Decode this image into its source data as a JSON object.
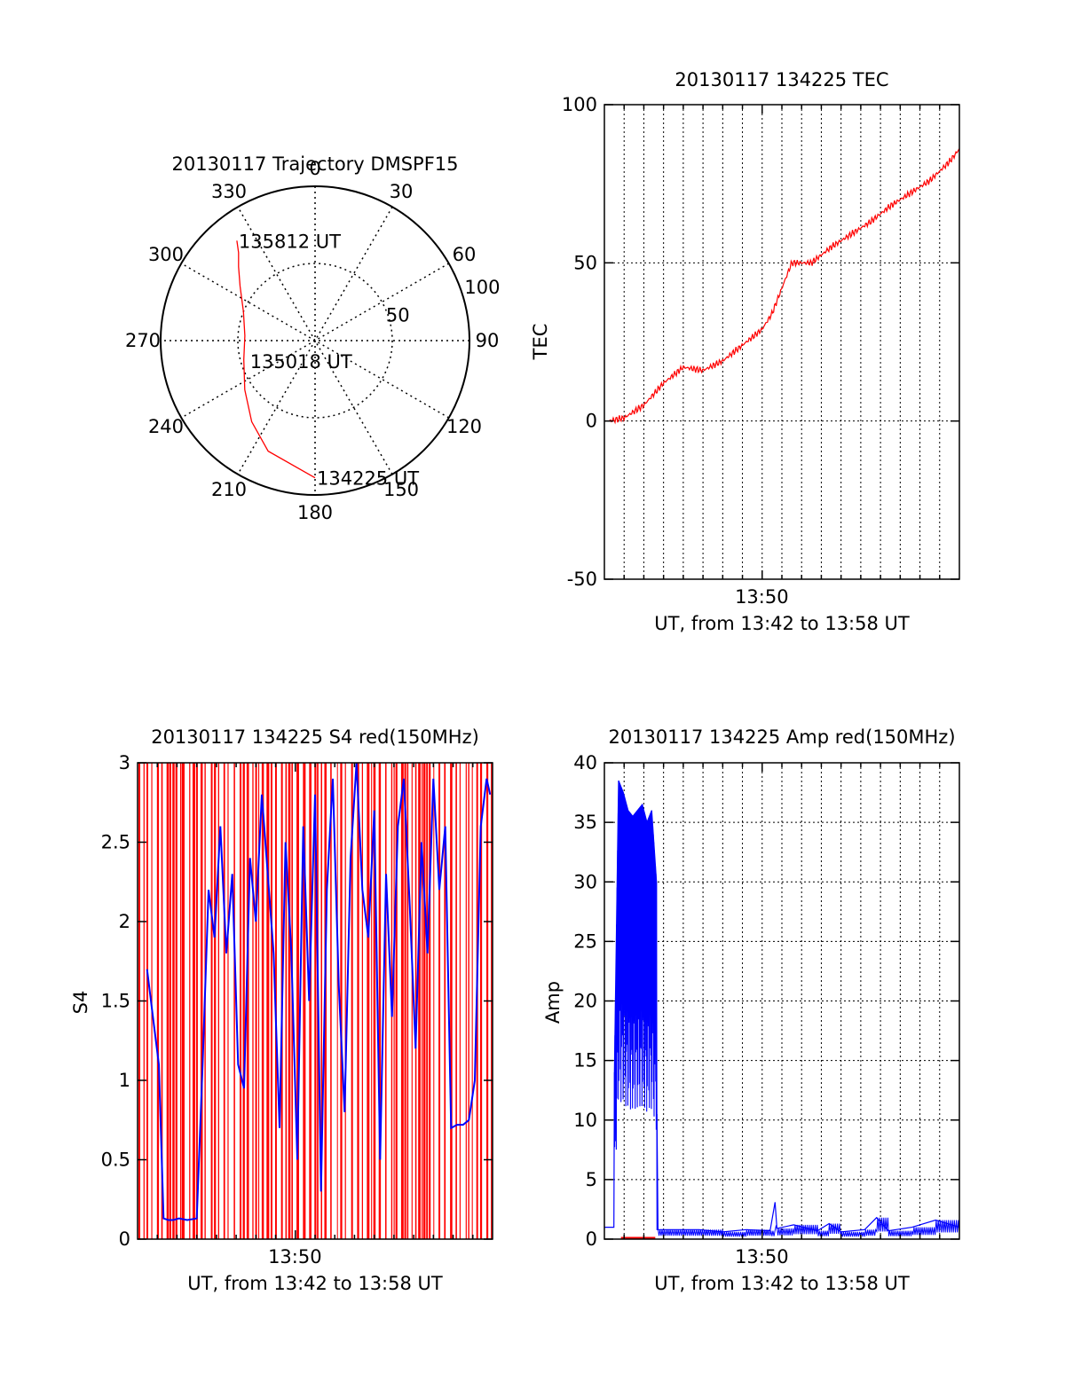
{
  "chart_data": [
    {
      "type": "scatter",
      "subtype": "polar-trajectory",
      "title": "20130117 Trajectory DMSPF15",
      "angle_labels": [
        "0",
        "30",
        "60",
        "90",
        "120",
        "150",
        "180",
        "210",
        "240",
        "270",
        "300",
        "330"
      ],
      "radial_labels": [
        "50",
        "100"
      ],
      "rlim": [
        0,
        100
      ],
      "colors": {
        "trajectory": "#ff0000",
        "frame": "#000000"
      },
      "series": [
        {
          "points": [
            {
              "azimuth_deg": 180.0,
              "elevation_deg": 10.0
            },
            {
              "azimuth_deg": 203.0,
              "elevation_deg": 20.0
            },
            {
              "azimuth_deg": 218.0,
              "elevation_deg": 30.0
            },
            {
              "azimuth_deg": 235.0,
              "elevation_deg": 40.0
            },
            {
              "azimuth_deg": 255.0,
              "elevation_deg": 47.0
            },
            {
              "azimuth_deg": 274.0,
              "elevation_deg": 49.0
            },
            {
              "azimuth_deg": 292.0,
              "elevation_deg": 45.0
            },
            {
              "azimuth_deg": 306.0,
              "elevation_deg": 36.0
            },
            {
              "azimuth_deg": 314.0,
              "elevation_deg": 28.0
            },
            {
              "azimuth_deg": 319.0,
              "elevation_deg": 22.0
            },
            {
              "azimuth_deg": 322.0,
              "elevation_deg": 16.0
            }
          ]
        }
      ],
      "annotations": [
        {
          "text": "135812 UT",
          "azimuth_deg": 322.0,
          "elevation_deg": 16.0
        },
        {
          "text": "135018 UT",
          "azimuth_deg": 200.0,
          "elevation_deg": 85.0
        },
        {
          "text": "134225 UT",
          "azimuth_deg": 180.0,
          "elevation_deg": 10.0
        }
      ]
    },
    {
      "type": "line",
      "title": "20130117 134225 TEC",
      "ylabel": "TEC",
      "xlabel": "UT, from 13:42 to 13:58 UT",
      "xlim": [
        13.7,
        14.0
      ],
      "ylim": [
        -50,
        100
      ],
      "yticks": [
        "-50",
        "0",
        "50",
        "100"
      ],
      "xtick_labels": [
        {
          "text": "13:50",
          "x": 13.833
        }
      ],
      "grid": true,
      "colors": {
        "line": "#ff0000"
      },
      "series": [
        {
          "x": [
            13.7038,
            13.7167,
            13.7333,
            13.75,
            13.7667,
            13.7833,
            13.8,
            13.8167,
            13.8333,
            13.8417,
            13.8583,
            13.875,
            13.8917,
            13.9083,
            13.925,
            13.9417,
            13.9583,
            13.975,
            13.9917,
            14.0
          ],
          "values": [
            0,
            1,
            5,
            12,
            17,
            16,
            19,
            24,
            29,
            34,
            50,
            50,
            55,
            59,
            63,
            68,
            72,
            76,
            82,
            86
          ]
        }
      ]
    },
    {
      "type": "line",
      "title": "20130117 134225 S4 red(150MHz)",
      "ylabel": "S4",
      "xlabel": "UT, from 13:42 to 13:58 UT",
      "xlim": [
        13.7,
        14.0
      ],
      "ylim": [
        0,
        3
      ],
      "yticks": [
        "0",
        "0.5",
        "1",
        "1.5",
        "2",
        "2.5",
        "3"
      ],
      "xtick_labels": [
        {
          "text": "13:50",
          "x": 13.833
        }
      ],
      "colors": {
        "s4": "#0000ff",
        "background": "#ff0000"
      },
      "series": [
        {
          "x": [
            13.708,
            13.713,
            13.718,
            13.722,
            13.726,
            13.73,
            13.735,
            13.742,
            13.75,
            13.755,
            13.76,
            13.765,
            13.77,
            13.775,
            13.78,
            13.785,
            13.79,
            13.795,
            13.8,
            13.805,
            13.81,
            13.815,
            13.82,
            13.825,
            13.83,
            13.835,
            13.84,
            13.845,
            13.85,
            13.855,
            13.86,
            13.865,
            13.87,
            13.875,
            13.88,
            13.885,
            13.89,
            13.895,
            13.9,
            13.905,
            13.91,
            13.915,
            13.92,
            13.925,
            13.93,
            13.935,
            13.94,
            13.945,
            13.95,
            13.955,
            13.96,
            13.965,
            13.97,
            13.975,
            13.98,
            13.985,
            13.99,
            13.995,
            13.998
          ],
          "values": [
            1.7,
            1.4,
            1.1,
            0.13,
            0.12,
            0.12,
            0.13,
            0.12,
            0.13,
            1.1,
            2.2,
            1.9,
            2.6,
            1.8,
            2.3,
            1.1,
            0.95,
            2.4,
            2.0,
            2.8,
            2.3,
            1.8,
            0.7,
            2.5,
            1.8,
            0.5,
            2.6,
            1.5,
            2.8,
            0.3,
            2.2,
            2.9,
            1.6,
            0.8,
            2.4,
            3.0,
            2.2,
            1.9,
            2.7,
            0.5,
            2.3,
            1.4,
            2.6,
            2.9,
            2.1,
            1.2,
            2.5,
            1.8,
            2.9,
            2.2,
            2.6,
            0.7,
            0.72,
            0.72,
            0.75,
            1.0,
            2.6,
            2.9,
            2.8
          ]
        }
      ]
    },
    {
      "type": "line",
      "title": "20130117 134225 Amp red(150MHz)",
      "ylabel": "Amp",
      "xlabel": "UT, from 13:42 to 13:58 UT",
      "xlim": [
        13.7,
        14.0
      ],
      "ylim": [
        0,
        40
      ],
      "yticks": [
        "0",
        "5",
        "10",
        "15",
        "20",
        "25",
        "30",
        "35",
        "40"
      ],
      "xtick_labels": [
        {
          "text": "13:50",
          "x": 13.833
        }
      ],
      "grid": true,
      "colors": {
        "amp": "#0000ff",
        "zero_segment": "#ff0000"
      },
      "series": [
        {
          "x": [
            13.7,
            13.708,
            13.7085,
            13.712,
            13.716,
            13.72,
            13.724,
            13.728,
            13.732,
            13.736,
            13.74,
            13.744,
            13.7445,
            13.76,
            13.78,
            13.8,
            13.82,
            13.84,
            13.8442,
            13.8458,
            13.86,
            13.88,
            13.89,
            13.9,
            13.92,
            13.93,
            13.94,
            13.96,
            13.98,
            14.0
          ],
          "values": [
            1.0,
            1.0,
            14.0,
            38.5,
            37.5,
            36.0,
            35.5,
            36.0,
            36.5,
            35.0,
            36.0,
            30.0,
            0.8,
            0.8,
            0.8,
            0.6,
            0.8,
            0.7,
            3.1,
            0.9,
            1.2,
            0.7,
            1.3,
            0.6,
            0.8,
            1.8,
            0.7,
            1.0,
            1.6,
            1.0
          ]
        }
      ],
      "zero_segment": {
        "x": [
          13.714,
          13.743
        ],
        "value": 0
      }
    }
  ]
}
